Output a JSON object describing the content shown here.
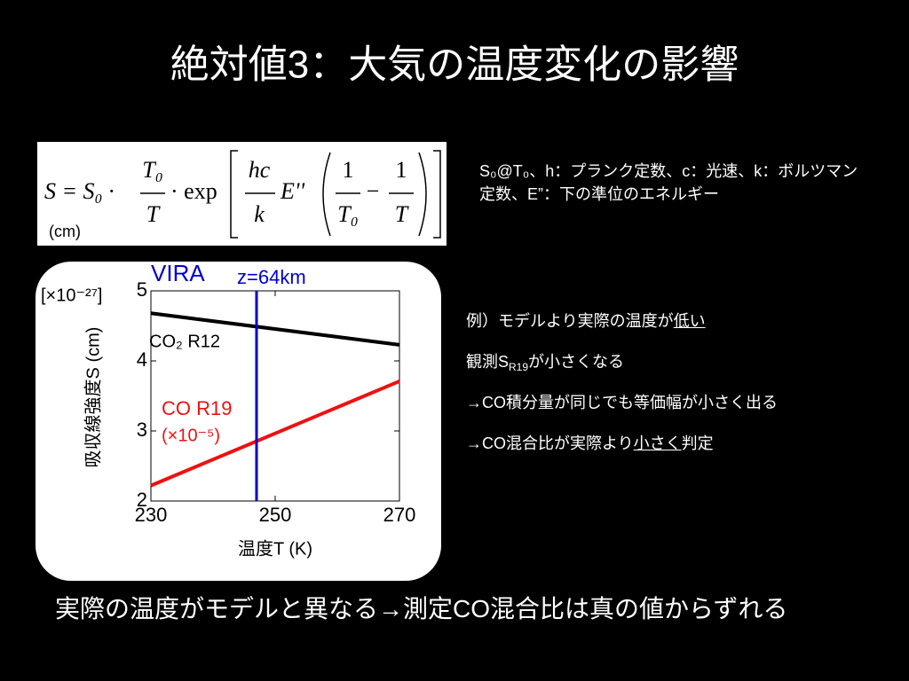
{
  "title": "絶対値3：大気の温度変化の影響",
  "formula": {
    "lhs": "S = S₀ ·",
    "frac1_num": "T₀",
    "frac1_den": "T",
    "exp": "· exp",
    "frac2_num": "hc",
    "frac2_den": "k",
    "energy": "E''",
    "frac3_num": "1",
    "frac3_den": "T₀",
    "minus": "−",
    "frac4_num": "1",
    "frac4_den": "T",
    "unit": "(cm)"
  },
  "definition": "S₀@T₀、h：プランク定数、c：光速、k：ボルツマン定数、E”：下の準位のエネルギー",
  "notes": [
    [
      {
        "text": "例）モデルより実際の温度が",
        "style": "plain"
      },
      {
        "text": "低い",
        "style": "underline"
      }
    ],
    [
      {
        "text": "観測S",
        "style": "plain"
      },
      {
        "text": "R19",
        "style": "sub"
      },
      {
        "text": "が小さくなる",
        "style": "plain"
      }
    ],
    [
      {
        "text": "→CO積分量が同じでも等価幅が小さく出る",
        "style": "plain"
      }
    ],
    [
      {
        "text": "→CO混合比が実際より",
        "style": "plain"
      },
      {
        "text": "小さく",
        "style": "underline"
      },
      {
        "text": "判定",
        "style": "plain"
      }
    ]
  ],
  "conclusion": "実際の温度がモデルと異なる→測定CO混合比は真の値からずれる",
  "chart_data": {
    "type": "line",
    "x_label": "温度T (K)",
    "y_label": "吸収線強度S (cm)",
    "y_multiplier": "[×10⁻²⁷]",
    "x": [
      230,
      270
    ],
    "series": [
      {
        "name": "CO₂ R12",
        "color": "#000000",
        "values": [
          4.68,
          4.23
        ]
      },
      {
        "name": "CO R19",
        "note": "(×10⁻⁵)",
        "color": "#ee1111",
        "values": [
          2.22,
          3.71
        ]
      }
    ],
    "vline": {
      "x": 247,
      "label": "VIRA",
      "sublabel": "z=64km",
      "color": "#0000cc"
    },
    "xlim": [
      230,
      270
    ],
    "xticks": [
      230,
      250,
      270
    ],
    "ylim": [
      2,
      5
    ],
    "yticks": [
      2,
      3,
      4,
      5
    ]
  }
}
